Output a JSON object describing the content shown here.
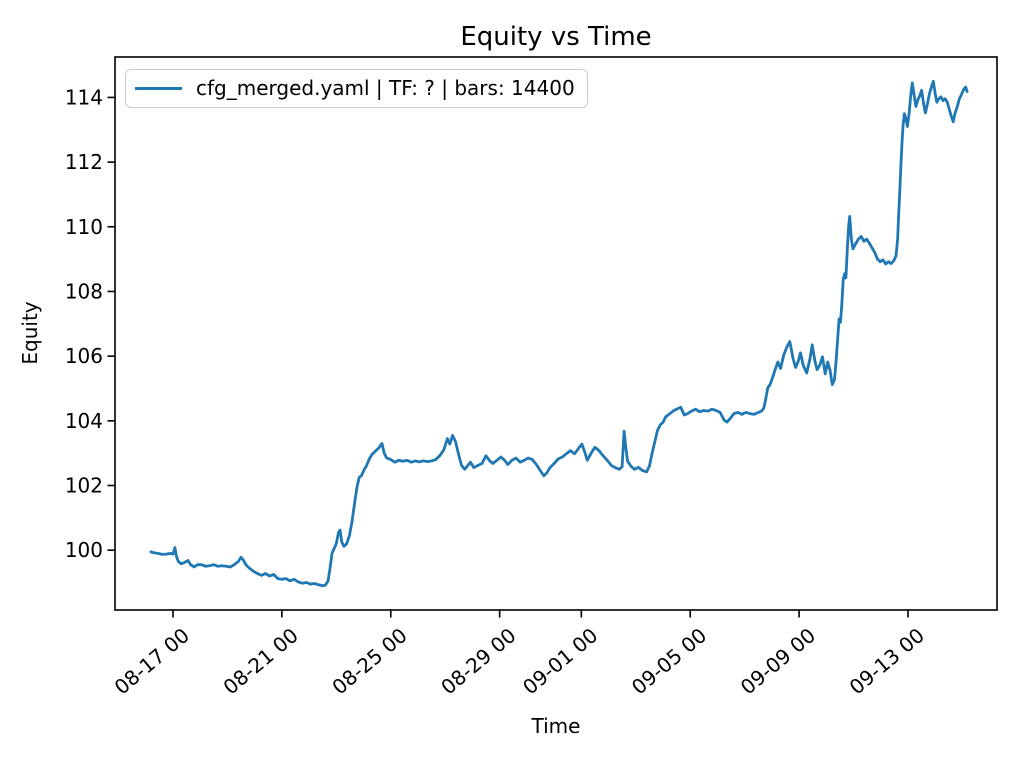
{
  "colors": {
    "line": "#1f77b4",
    "spine": "#000000",
    "legend_border": "#cccccc",
    "background": "#ffffff"
  },
  "chart_data": {
    "type": "line",
    "title": "Equity vs Time",
    "xlabel": "Time",
    "ylabel": "Equity",
    "grid": false,
    "legend_position": "upper left",
    "x_units": "days (1.0 = 08-17 00:00)",
    "xlim": [
      -1.13,
      31.27
    ],
    "ylim": [
      98.15,
      115.25
    ],
    "x_ticks": [
      {
        "pos": 1,
        "label": "08-17 00"
      },
      {
        "pos": 5,
        "label": "08-21 00"
      },
      {
        "pos": 9,
        "label": "08-25 00"
      },
      {
        "pos": 13,
        "label": "08-29 00"
      },
      {
        "pos": 16,
        "label": "09-01 00"
      },
      {
        "pos": 20,
        "label": "09-05 00"
      },
      {
        "pos": 24,
        "label": "09-09 00"
      },
      {
        "pos": 28,
        "label": "09-13 00"
      }
    ],
    "y_ticks": [
      100,
      102,
      104,
      106,
      108,
      110,
      112,
      114
    ],
    "series": [
      {
        "name": "cfg_merged.yaml | TF: ? | bars: 14400",
        "color": "#1f77b4",
        "points": [
          [
            0.19,
            99.95
          ],
          [
            0.3,
            99.92
          ],
          [
            0.45,
            99.9
          ],
          [
            0.6,
            99.87
          ],
          [
            0.75,
            99.88
          ],
          [
            0.9,
            99.9
          ],
          [
            1.0,
            99.88
          ],
          [
            1.07,
            100.08
          ],
          [
            1.13,
            99.8
          ],
          [
            1.2,
            99.65
          ],
          [
            1.3,
            99.58
          ],
          [
            1.42,
            99.62
          ],
          [
            1.55,
            99.68
          ],
          [
            1.65,
            99.55
          ],
          [
            1.78,
            99.48
          ],
          [
            1.9,
            99.55
          ],
          [
            2.05,
            99.55
          ],
          [
            2.2,
            99.5
          ],
          [
            2.35,
            99.52
          ],
          [
            2.5,
            99.55
          ],
          [
            2.65,
            99.5
          ],
          [
            2.8,
            99.52
          ],
          [
            2.95,
            99.5
          ],
          [
            3.1,
            99.48
          ],
          [
            3.25,
            99.55
          ],
          [
            3.4,
            99.65
          ],
          [
            3.5,
            99.78
          ],
          [
            3.58,
            99.7
          ],
          [
            3.68,
            99.55
          ],
          [
            3.8,
            99.45
          ],
          [
            3.95,
            99.35
          ],
          [
            4.1,
            99.28
          ],
          [
            4.25,
            99.22
          ],
          [
            4.4,
            99.28
          ],
          [
            4.55,
            99.2
          ],
          [
            4.7,
            99.25
          ],
          [
            4.85,
            99.12
          ],
          [
            5.0,
            99.1
          ],
          [
            5.15,
            99.12
          ],
          [
            5.3,
            99.05
          ],
          [
            5.45,
            99.1
          ],
          [
            5.6,
            99.02
          ],
          [
            5.75,
            98.98
          ],
          [
            5.9,
            99.0
          ],
          [
            6.05,
            98.95
          ],
          [
            6.2,
            98.97
          ],
          [
            6.35,
            98.93
          ],
          [
            6.5,
            98.9
          ],
          [
            6.6,
            98.92
          ],
          [
            6.7,
            99.05
          ],
          [
            6.78,
            99.5
          ],
          [
            6.84,
            99.9
          ],
          [
            6.92,
            100.05
          ],
          [
            7.0,
            100.2
          ],
          [
            7.08,
            100.55
          ],
          [
            7.14,
            100.62
          ],
          [
            7.2,
            100.25
          ],
          [
            7.28,
            100.12
          ],
          [
            7.38,
            100.2
          ],
          [
            7.48,
            100.45
          ],
          [
            7.58,
            100.9
          ],
          [
            7.68,
            101.5
          ],
          [
            7.76,
            101.95
          ],
          [
            7.84,
            102.25
          ],
          [
            7.92,
            102.3
          ],
          [
            8.0,
            102.45
          ],
          [
            8.1,
            102.6
          ],
          [
            8.2,
            102.8
          ],
          [
            8.3,
            102.95
          ],
          [
            8.42,
            103.05
          ],
          [
            8.55,
            103.15
          ],
          [
            8.68,
            103.3
          ],
          [
            8.76,
            103.0
          ],
          [
            8.85,
            102.85
          ],
          [
            9.0,
            102.8
          ],
          [
            9.15,
            102.72
          ],
          [
            9.3,
            102.78
          ],
          [
            9.45,
            102.75
          ],
          [
            9.6,
            102.78
          ],
          [
            9.75,
            102.72
          ],
          [
            9.9,
            102.76
          ],
          [
            10.05,
            102.73
          ],
          [
            10.2,
            102.76
          ],
          [
            10.35,
            102.74
          ],
          [
            10.5,
            102.76
          ],
          [
            10.65,
            102.8
          ],
          [
            10.8,
            102.92
          ],
          [
            10.95,
            103.1
          ],
          [
            11.08,
            103.45
          ],
          [
            11.17,
            103.28
          ],
          [
            11.27,
            103.55
          ],
          [
            11.38,
            103.35
          ],
          [
            11.48,
            103.0
          ],
          [
            11.6,
            102.62
          ],
          [
            11.72,
            102.5
          ],
          [
            11.83,
            102.62
          ],
          [
            11.93,
            102.72
          ],
          [
            12.05,
            102.55
          ],
          [
            12.2,
            102.62
          ],
          [
            12.35,
            102.68
          ],
          [
            12.5,
            102.92
          ],
          [
            12.62,
            102.78
          ],
          [
            12.75,
            102.68
          ],
          [
            12.9,
            102.78
          ],
          [
            13.05,
            102.88
          ],
          [
            13.18,
            102.78
          ],
          [
            13.3,
            102.65
          ],
          [
            13.45,
            102.78
          ],
          [
            13.6,
            102.85
          ],
          [
            13.75,
            102.72
          ],
          [
            13.9,
            102.78
          ],
          [
            14.05,
            102.85
          ],
          [
            14.2,
            102.8
          ],
          [
            14.35,
            102.65
          ],
          [
            14.5,
            102.45
          ],
          [
            14.62,
            102.3
          ],
          [
            14.72,
            102.38
          ],
          [
            14.85,
            102.55
          ],
          [
            15.0,
            102.68
          ],
          [
            15.15,
            102.82
          ],
          [
            15.3,
            102.88
          ],
          [
            15.45,
            102.98
          ],
          [
            15.6,
            103.08
          ],
          [
            15.75,
            102.98
          ],
          [
            15.9,
            103.15
          ],
          [
            16.02,
            103.28
          ],
          [
            16.12,
            103.05
          ],
          [
            16.22,
            102.78
          ],
          [
            16.35,
            102.98
          ],
          [
            16.5,
            103.18
          ],
          [
            16.65,
            103.08
          ],
          [
            16.8,
            102.92
          ],
          [
            16.95,
            102.78
          ],
          [
            17.1,
            102.62
          ],
          [
            17.25,
            102.55
          ],
          [
            17.4,
            102.5
          ],
          [
            17.5,
            102.58
          ],
          [
            17.57,
            103.68
          ],
          [
            17.63,
            103.2
          ],
          [
            17.7,
            102.75
          ],
          [
            17.82,
            102.6
          ],
          [
            17.95,
            102.5
          ],
          [
            18.1,
            102.56
          ],
          [
            18.25,
            102.46
          ],
          [
            18.4,
            102.42
          ],
          [
            18.5,
            102.6
          ],
          [
            18.6,
            103.0
          ],
          [
            18.7,
            103.35
          ],
          [
            18.8,
            103.7
          ],
          [
            18.9,
            103.88
          ],
          [
            19.0,
            103.95
          ],
          [
            19.1,
            104.12
          ],
          [
            19.25,
            104.22
          ],
          [
            19.4,
            104.32
          ],
          [
            19.55,
            104.38
          ],
          [
            19.65,
            104.42
          ],
          [
            19.78,
            104.18
          ],
          [
            19.9,
            104.22
          ],
          [
            20.05,
            104.3
          ],
          [
            20.2,
            104.36
          ],
          [
            20.35,
            104.28
          ],
          [
            20.5,
            104.32
          ],
          [
            20.65,
            104.3
          ],
          [
            20.8,
            104.36
          ],
          [
            20.95,
            104.32
          ],
          [
            21.1,
            104.26
          ],
          [
            21.25,
            104.02
          ],
          [
            21.35,
            103.96
          ],
          [
            21.48,
            104.08
          ],
          [
            21.6,
            104.22
          ],
          [
            21.75,
            104.26
          ],
          [
            21.9,
            104.2
          ],
          [
            22.05,
            104.26
          ],
          [
            22.2,
            104.22
          ],
          [
            22.35,
            104.2
          ],
          [
            22.5,
            104.26
          ],
          [
            22.62,
            104.3
          ],
          [
            22.7,
            104.38
          ],
          [
            22.78,
            104.7
          ],
          [
            22.85,
            105.02
          ],
          [
            22.93,
            105.12
          ],
          [
            23.02,
            105.32
          ],
          [
            23.12,
            105.58
          ],
          [
            23.22,
            105.82
          ],
          [
            23.32,
            105.62
          ],
          [
            23.43,
            106.02
          ],
          [
            23.55,
            106.28
          ],
          [
            23.66,
            106.45
          ],
          [
            23.78,
            105.92
          ],
          [
            23.87,
            105.65
          ],
          [
            23.96,
            105.82
          ],
          [
            24.05,
            106.1
          ],
          [
            24.15,
            105.72
          ],
          [
            24.28,
            105.48
          ],
          [
            24.4,
            105.92
          ],
          [
            24.48,
            106.35
          ],
          [
            24.58,
            105.85
          ],
          [
            24.66,
            105.58
          ],
          [
            24.76,
            105.72
          ],
          [
            24.86,
            105.98
          ],
          [
            24.96,
            105.45
          ],
          [
            25.05,
            105.82
          ],
          [
            25.14,
            105.55
          ],
          [
            25.22,
            105.12
          ],
          [
            25.3,
            105.28
          ],
          [
            25.36,
            105.85
          ],
          [
            25.42,
            106.6
          ],
          [
            25.47,
            107.15
          ],
          [
            25.52,
            107.05
          ],
          [
            25.57,
            107.6
          ],
          [
            25.62,
            108.35
          ],
          [
            25.67,
            108.55
          ],
          [
            25.72,
            108.42
          ],
          [
            25.77,
            109.3
          ],
          [
            25.82,
            110.0
          ],
          [
            25.86,
            110.32
          ],
          [
            25.92,
            109.6
          ],
          [
            25.98,
            109.32
          ],
          [
            26.08,
            109.48
          ],
          [
            26.18,
            109.62
          ],
          [
            26.28,
            109.7
          ],
          [
            26.38,
            109.55
          ],
          [
            26.48,
            109.62
          ],
          [
            26.58,
            109.5
          ],
          [
            26.68,
            109.35
          ],
          [
            26.78,
            109.2
          ],
          [
            26.88,
            109.0
          ],
          [
            26.98,
            108.92
          ],
          [
            27.08,
            108.98
          ],
          [
            27.18,
            108.85
          ],
          [
            27.28,
            108.92
          ],
          [
            27.38,
            108.86
          ],
          [
            27.48,
            108.95
          ],
          [
            27.56,
            109.1
          ],
          [
            27.62,
            109.6
          ],
          [
            27.66,
            110.4
          ],
          [
            27.7,
            111.1
          ],
          [
            27.74,
            111.9
          ],
          [
            27.78,
            112.6
          ],
          [
            27.82,
            113.15
          ],
          [
            27.87,
            113.5
          ],
          [
            27.92,
            113.35
          ],
          [
            27.98,
            113.1
          ],
          [
            28.04,
            113.5
          ],
          [
            28.1,
            114.05
          ],
          [
            28.16,
            114.45
          ],
          [
            28.22,
            114.1
          ],
          [
            28.29,
            113.72
          ],
          [
            28.36,
            113.92
          ],
          [
            28.43,
            114.05
          ],
          [
            28.5,
            114.22
          ],
          [
            28.57,
            113.82
          ],
          [
            28.64,
            113.52
          ],
          [
            28.71,
            113.78
          ],
          [
            28.79,
            114.12
          ],
          [
            28.86,
            114.32
          ],
          [
            28.93,
            114.5
          ],
          [
            29.0,
            114.12
          ],
          [
            29.06,
            113.85
          ],
          [
            29.13,
            113.95
          ],
          [
            29.21,
            114.02
          ],
          [
            29.29,
            113.9
          ],
          [
            29.36,
            113.96
          ],
          [
            29.44,
            113.86
          ],
          [
            29.52,
            113.62
          ],
          [
            29.59,
            113.42
          ],
          [
            29.66,
            113.25
          ],
          [
            29.73,
            113.52
          ],
          [
            29.81,
            113.72
          ],
          [
            29.89,
            113.96
          ],
          [
            29.97,
            114.1
          ],
          [
            30.05,
            114.25
          ],
          [
            30.12,
            114.32
          ],
          [
            30.17,
            114.18
          ]
        ]
      }
    ]
  }
}
